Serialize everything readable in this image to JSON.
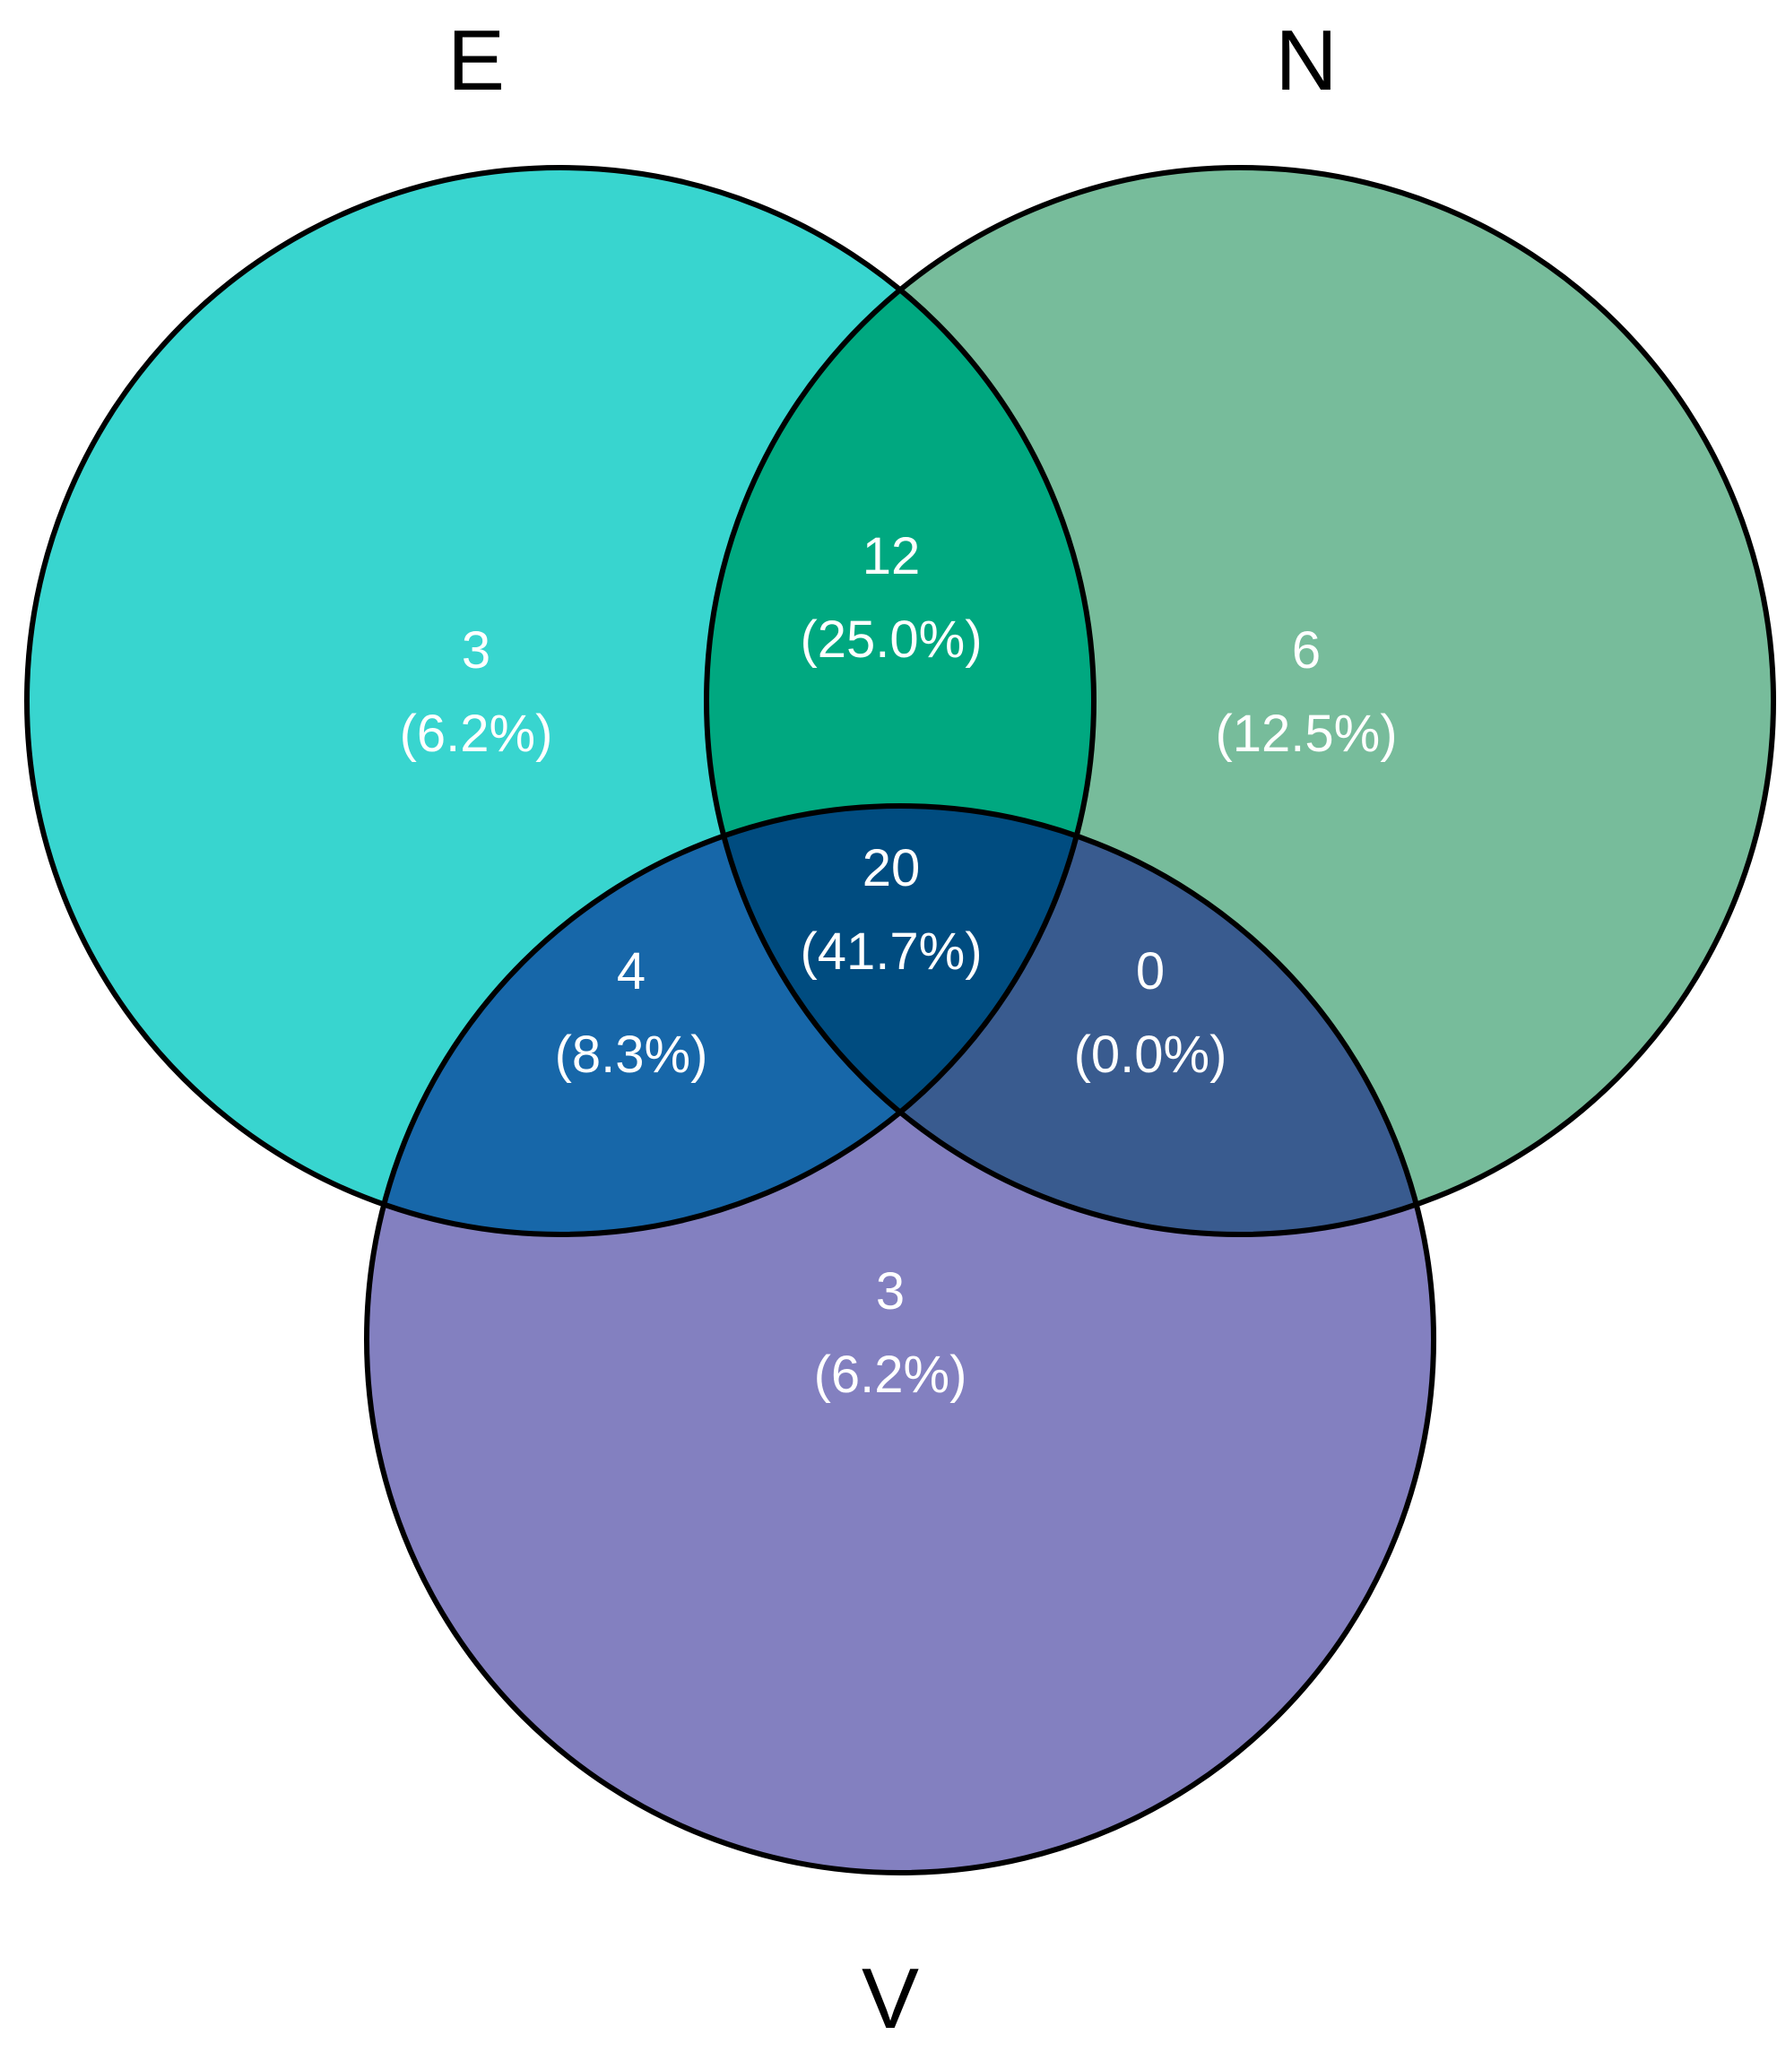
{
  "sets": [
    {
      "id": "E",
      "label": "E",
      "color": "#38d5cf"
    },
    {
      "id": "N",
      "label": "N",
      "color": "#77bc9b"
    },
    {
      "id": "V",
      "label": "V",
      "color": "#8380c0"
    }
  ],
  "regions": [
    {
      "id": "E_only",
      "sets": [
        "E"
      ],
      "count": "3",
      "percent": "(6.2%)",
      "color": "#38d5cf"
    },
    {
      "id": "N_only",
      "sets": [
        "N"
      ],
      "count": "6",
      "percent": "(12.5%)",
      "color": "#77bc9b"
    },
    {
      "id": "V_only",
      "sets": [
        "V"
      ],
      "count": "3",
      "percent": "(6.2%)",
      "color": "#8380c0"
    },
    {
      "id": "E_N",
      "sets": [
        "E",
        "N"
      ],
      "count": "12",
      "percent": "(25.0%)",
      "color": "#00a880"
    },
    {
      "id": "E_V",
      "sets": [
        "E",
        "V"
      ],
      "count": "4",
      "percent": "(8.3%)",
      "color": "#1767a9"
    },
    {
      "id": "N_V",
      "sets": [
        "N",
        "V"
      ],
      "count": "0",
      "percent": "(0.0%)",
      "color": "#395b8f"
    },
    {
      "id": "E_N_V",
      "sets": [
        "E",
        "N",
        "V"
      ],
      "count": "20",
      "percent": "(41.7%)",
      "color": "#004c80"
    }
  ]
}
